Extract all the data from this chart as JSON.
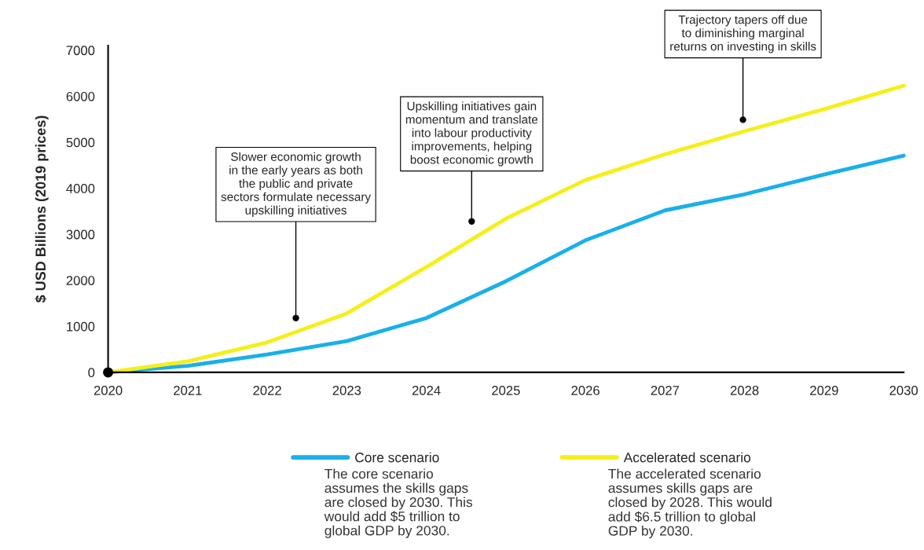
{
  "chart_data": {
    "type": "line",
    "ylabel": "$ USD Billions (2019 prices)",
    "x": [
      2020,
      2021,
      2022,
      2023,
      2024,
      2025,
      2026,
      2027,
      2028,
      2029,
      2030
    ],
    "xlim": [
      2020,
      2030
    ],
    "ylim": [
      0,
      7100
    ],
    "xticks": [
      2020,
      2021,
      2022,
      2023,
      2024,
      2025,
      2026,
      2027,
      2028,
      2029,
      2030
    ],
    "yticks": [
      0,
      1000,
      2000,
      3000,
      4000,
      5000,
      6000,
      7000
    ],
    "grid": false,
    "legend": "bottom",
    "marker": "none",
    "line_style": "solid",
    "series": [
      {
        "name": "Core scenario",
        "color": "#1ab0e8",
        "values": [
          0,
          140,
          390,
          680,
          1180,
          1980,
          2870,
          3520,
          3870,
          4300,
          4710
        ]
      },
      {
        "name": "Accelerated scenario",
        "color": "#f5ef1a",
        "values": [
          0,
          240,
          650,
          1280,
          2290,
          3340,
          4180,
          4740,
          5240,
          5720,
          6230
        ]
      },
      {
        "type": "scatter",
        "color": "#000000",
        "marker": "circle",
        "x": [
          2020
        ],
        "values": [
          0
        ]
      }
    ],
    "annotations": [
      {
        "text": "Slower economic growth\nin the early years as both\nthe public and private\nsectors formulate necessary\nupskilling initiatives",
        "x": 2022.36,
        "y": 1180
      },
      {
        "text": "Upskilling initiatives gain\nmomentum and translate\ninto labour productivity\nimprovements, helping\nboost economic growth",
        "x": 2024.57,
        "y": 3280
      },
      {
        "text": "Trajectory tapers off due\nto diminishing marginal\nreturns on investing in skills",
        "x": 2027.98,
        "y": 5490
      },
      "The core scenario\nassumes the skills gaps\nare closed by 2030. This\nwould add $5 trillion to\nglobal GDP by 2030.",
      "The accelerated scenario\nassumes skills gaps are\nclosed by 2028. This would\nadd $6.5 trillion to global\nGDP by 2030."
    ]
  }
}
